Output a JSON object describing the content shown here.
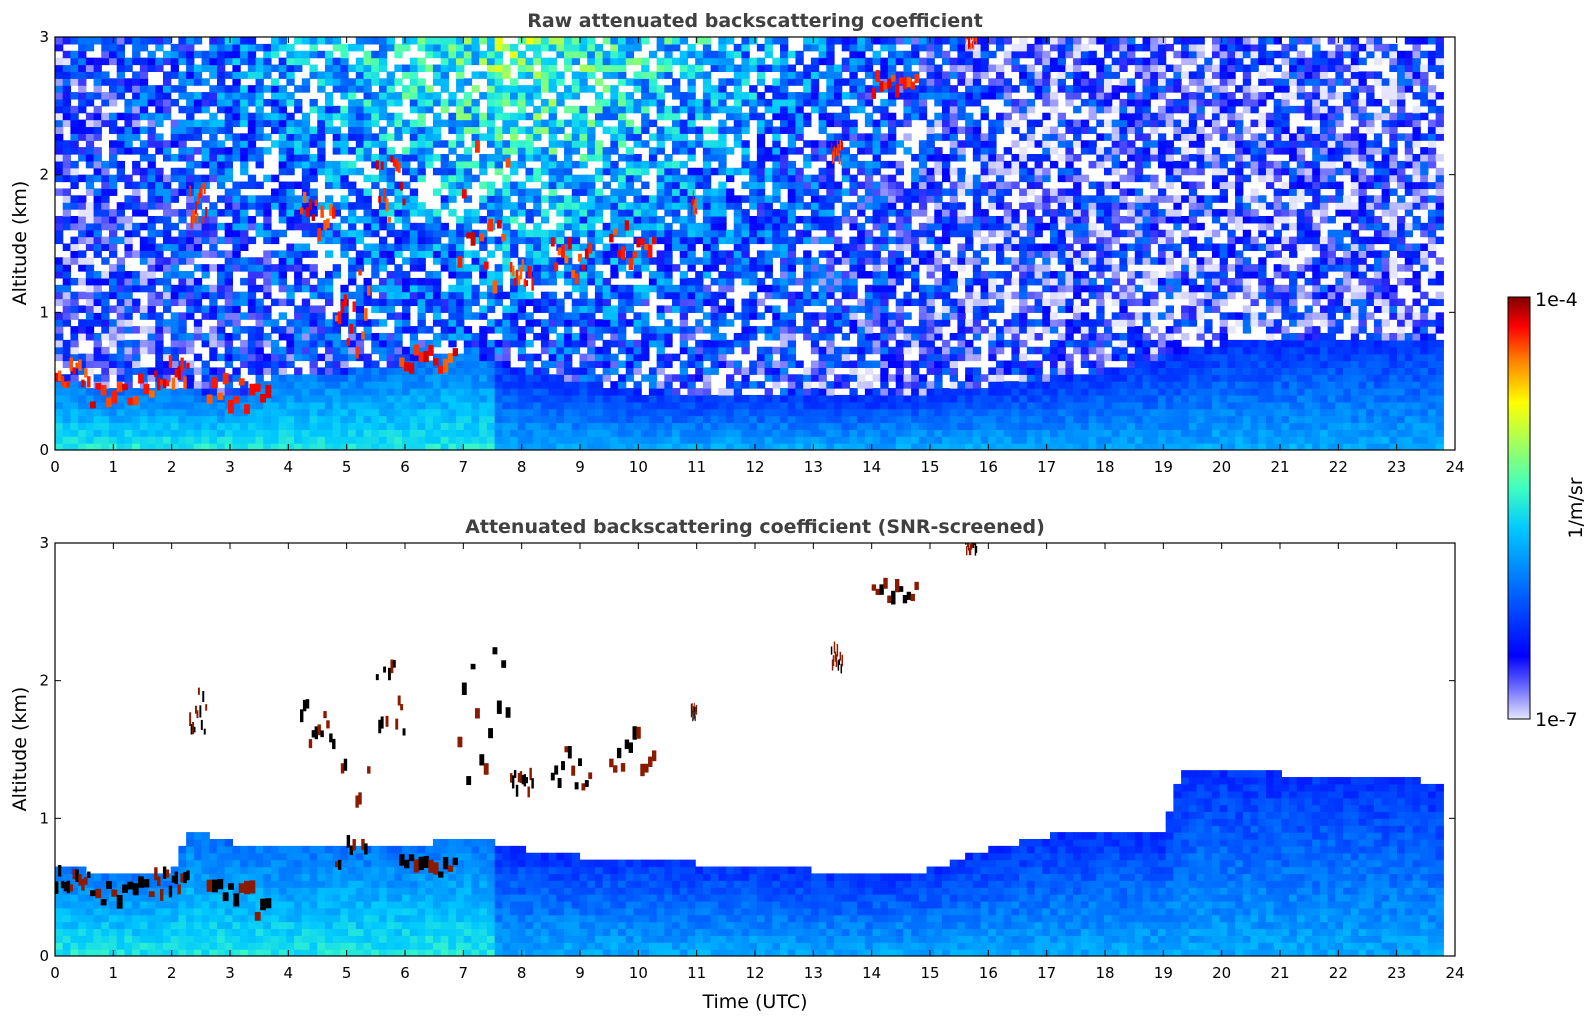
{
  "chart_data": [
    {
      "type": "heatmap",
      "title": "Raw attenuated backscattering coefficient",
      "xlabel": "",
      "ylabel": "Altitude (km)",
      "xlim": [
        0,
        24
      ],
      "ylim": [
        0,
        3
      ],
      "x_ticks": [
        "0",
        "1",
        "2",
        "3",
        "4",
        "5",
        "6",
        "7",
        "8",
        "9",
        "10",
        "11",
        "12",
        "13",
        "14",
        "15",
        "16",
        "17",
        "18",
        "19",
        "20",
        "21",
        "22",
        "23",
        "24"
      ],
      "y_ticks": [
        "0",
        "1",
        "2",
        "3"
      ],
      "data_end_hour": 23.8,
      "boundary_layer_top_km": [
        [
          0,
          0.5
        ],
        [
          1,
          0.4
        ],
        [
          2,
          0.45
        ],
        [
          3,
          0.35
        ],
        [
          4,
          0.55
        ],
        [
          5,
          0.55
        ],
        [
          6,
          0.6
        ],
        [
          7,
          0.7
        ],
        [
          8,
          0.55
        ],
        [
          10,
          0.4
        ],
        [
          12,
          0.4
        ],
        [
          14,
          0.35
        ],
        [
          16,
          0.45
        ],
        [
          18,
          0.55
        ],
        [
          20,
          0.75
        ],
        [
          22,
          0.8
        ],
        [
          23.8,
          0.8
        ]
      ],
      "cloud_segments": [
        {
          "t": [
            0.0,
            0.6
          ],
          "alt": [
            0.45,
            0.6
          ]
        },
        {
          "t": [
            0.6,
            1.7
          ],
          "alt": [
            0.3,
            0.5
          ]
        },
        {
          "t": [
            1.7,
            2.3
          ],
          "alt": [
            0.4,
            0.6
          ]
        },
        {
          "t": [
            2.3,
            2.6
          ],
          "alt": [
            1.6,
            1.9
          ]
        },
        {
          "t": [
            2.6,
            3.7
          ],
          "alt": [
            0.25,
            0.5
          ]
        },
        {
          "t": [
            4.2,
            4.8
          ],
          "alt": [
            1.5,
            1.8
          ]
        },
        {
          "t": [
            4.8,
            5.4
          ],
          "alt": [
            0.6,
            1.4
          ]
        },
        {
          "t": [
            5.5,
            6.0
          ],
          "alt": [
            1.6,
            2.1
          ]
        },
        {
          "t": [
            5.9,
            6.9
          ],
          "alt": [
            0.55,
            0.7
          ]
        },
        {
          "t": [
            6.9,
            7.8
          ],
          "alt": [
            1.1,
            2.2
          ]
        },
        {
          "t": [
            7.8,
            8.2
          ],
          "alt": [
            1.15,
            1.3
          ]
        },
        {
          "t": [
            8.5,
            9.2
          ],
          "alt": [
            1.2,
            1.5
          ]
        },
        {
          "t": [
            9.5,
            10.3
          ],
          "alt": [
            1.3,
            1.6
          ]
        },
        {
          "t": [
            10.9,
            11.0
          ],
          "alt": [
            1.7,
            1.8
          ]
        },
        {
          "t": [
            13.3,
            13.5
          ],
          "alt": [
            2.05,
            2.2
          ]
        },
        {
          "t": [
            14.0,
            14.8
          ],
          "alt": [
            2.55,
            2.7
          ]
        },
        {
          "t": [
            15.6,
            15.8
          ],
          "alt": [
            2.9,
            3.0
          ]
        }
      ]
    },
    {
      "type": "heatmap",
      "title": "Attenuated backscattering coefficient (SNR-screened)",
      "xlabel": "Time (UTC)",
      "ylabel": "Altitude (km)",
      "xlim": [
        0,
        24
      ],
      "ylim": [
        0,
        3
      ],
      "x_ticks": [
        "0",
        "1",
        "2",
        "3",
        "4",
        "5",
        "6",
        "7",
        "8",
        "9",
        "10",
        "11",
        "12",
        "13",
        "14",
        "15",
        "16",
        "17",
        "18",
        "19",
        "20",
        "21",
        "22",
        "23",
        "24"
      ],
      "y_ticks": [
        "0",
        "1",
        "2",
        "3"
      ],
      "data_end_hour": 23.8,
      "signal_top_km": [
        [
          0,
          0.65
        ],
        [
          1,
          0.55
        ],
        [
          2,
          0.6
        ],
        [
          2.3,
          0.9
        ],
        [
          3,
          0.8
        ],
        [
          4,
          0.75
        ],
        [
          5,
          0.8
        ],
        [
          6,
          0.75
        ],
        [
          7,
          0.85
        ],
        [
          7.5,
          0.8
        ],
        [
          8,
          0.75
        ],
        [
          9,
          0.7
        ],
        [
          10,
          0.7
        ],
        [
          11,
          0.65
        ],
        [
          12,
          0.65
        ],
        [
          13,
          0.6
        ],
        [
          14,
          0.55
        ],
        [
          15,
          0.6
        ],
        [
          16,
          0.75
        ],
        [
          17,
          0.85
        ],
        [
          18,
          0.9
        ],
        [
          19,
          0.85
        ],
        [
          19.3,
          1.3
        ],
        [
          20,
          1.35
        ],
        [
          21,
          1.3
        ],
        [
          22,
          1.3
        ],
        [
          23,
          1.3
        ],
        [
          23.8,
          1.2
        ]
      ],
      "colorbar": {
        "min_label": "1e-7",
        "max_label": "1e-4",
        "unit": "1/m/sr",
        "scale": "log",
        "range": [
          1e-07,
          0.0001
        ]
      }
    }
  ]
}
